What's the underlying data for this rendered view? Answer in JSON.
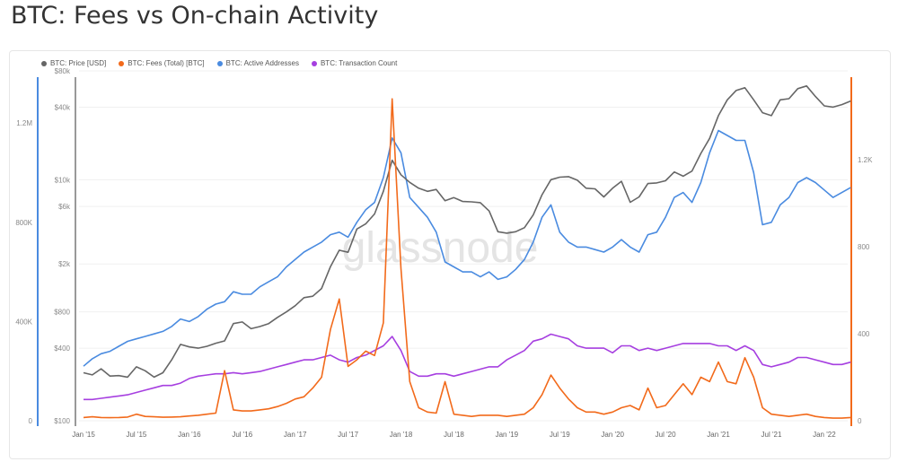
{
  "title": "BTC: Fees vs On-chain Activity",
  "watermark": "glassnode",
  "chart_data": {
    "type": "line",
    "legend_position": "top-left",
    "grid": true,
    "x": [
      "2015-01",
      "2015-02",
      "2015-03",
      "2015-04",
      "2015-05",
      "2015-06",
      "2015-07",
      "2015-08",
      "2015-09",
      "2015-10",
      "2015-11",
      "2015-12",
      "2016-01",
      "2016-02",
      "2016-03",
      "2016-04",
      "2016-05",
      "2016-06",
      "2016-07",
      "2016-08",
      "2016-09",
      "2016-10",
      "2016-11",
      "2016-12",
      "2017-01",
      "2017-02",
      "2017-03",
      "2017-04",
      "2017-05",
      "2017-06",
      "2017-07",
      "2017-08",
      "2017-09",
      "2017-10",
      "2017-11",
      "2017-12",
      "2018-01",
      "2018-02",
      "2018-03",
      "2018-04",
      "2018-05",
      "2018-06",
      "2018-07",
      "2018-08",
      "2018-09",
      "2018-10",
      "2018-11",
      "2018-12",
      "2019-01",
      "2019-02",
      "2019-03",
      "2019-04",
      "2019-05",
      "2019-06",
      "2019-07",
      "2019-08",
      "2019-09",
      "2019-10",
      "2019-11",
      "2019-12",
      "2020-01",
      "2020-02",
      "2020-03",
      "2020-04",
      "2020-05",
      "2020-06",
      "2020-07",
      "2020-08",
      "2020-09",
      "2020-10",
      "2020-11",
      "2020-12",
      "2021-01",
      "2021-02",
      "2021-03",
      "2021-04",
      "2021-05",
      "2021-06",
      "2021-07",
      "2021-08",
      "2021-09",
      "2021-10",
      "2021-11",
      "2021-12",
      "2022-01",
      "2022-02",
      "2022-03",
      "2022-04"
    ],
    "x_ticks": [
      "Jan '15",
      "Jul '15",
      "Jan '16",
      "Jul '16",
      "Jan '17",
      "Jul '17",
      "Jan '18",
      "Jul '18",
      "Jan '19",
      "Jul '19",
      "Jan '20",
      "Jul '20",
      "Jan '21",
      "Jul '21",
      "Jan '22"
    ],
    "axes": {
      "addresses": {
        "ticks": [
          "0",
          "400K",
          "800K",
          "1.2M"
        ],
        "tick_values": [
          0,
          400000,
          800000,
          1200000
        ],
        "range": [
          0,
          1385000
        ],
        "color": "#4a8be0"
      },
      "price": {
        "scale": "log",
        "ticks": [
          "$100",
          "$400",
          "$800",
          "$2k",
          "$6k",
          "$10k",
          "$40k",
          "$80k"
        ],
        "tick_values": [
          100,
          400,
          800,
          2000,
          6000,
          10000,
          40000,
          80000
        ],
        "range": [
          100,
          80000
        ],
        "color": "#888888"
      },
      "fees": {
        "ticks": [
          "0",
          "400",
          "800",
          "1.2K"
        ],
        "tick_values": [
          0,
          400,
          800,
          1200
        ],
        "range": [
          0,
          1580
        ],
        "color": "#f26a1b"
      },
      "tx": {
        "range": [
          19000,
          1492000
        ],
        "hidden": true
      }
    },
    "series": [
      {
        "name": "BTC: Price [USD]",
        "axis": "price",
        "color": "#666666",
        "values": [
          250,
          240,
          270,
          235,
          237,
          230,
          280,
          260,
          230,
          250,
          320,
          430,
          410,
          400,
          415,
          440,
          460,
          640,
          660,
          580,
          605,
          640,
          720,
          800,
          900,
          1050,
          1080,
          1250,
          1900,
          2600,
          2500,
          3900,
          4300,
          5200,
          8000,
          14500,
          11000,
          9500,
          8500,
          8000,
          8300,
          6700,
          7100,
          6600,
          6550,
          6450,
          5500,
          3700,
          3600,
          3700,
          4000,
          5100,
          7500,
          10000,
          10500,
          10600,
          9900,
          8500,
          8400,
          7200,
          8500,
          9700,
          6500,
          7200,
          9300,
          9400,
          9800,
          11600,
          10700,
          11800,
          16500,
          22000,
          34000,
          46000,
          55000,
          58000,
          46000,
          36000,
          34000,
          46000,
          47000,
          57000,
          60000,
          49000,
          41000,
          40000,
          42000,
          45000
        ]
      },
      {
        "name": "BTC: Fees (Total) [BTC]",
        "axis": "fees",
        "color": "#f26a1b",
        "values": [
          15,
          18,
          15,
          14,
          15,
          17,
          30,
          20,
          18,
          16,
          17,
          18,
          22,
          25,
          30,
          35,
          230,
          50,
          45,
          45,
          50,
          55,
          65,
          80,
          100,
          110,
          150,
          200,
          420,
          560,
          250,
          280,
          320,
          300,
          450,
          1480,
          700,
          180,
          60,
          40,
          35,
          180,
          30,
          25,
          20,
          25,
          25,
          25,
          20,
          25,
          30,
          60,
          120,
          210,
          150,
          100,
          60,
          40,
          40,
          30,
          40,
          60,
          70,
          50,
          150,
          60,
          70,
          120,
          170,
          120,
          200,
          180,
          270,
          180,
          170,
          290,
          200,
          60,
          30,
          25,
          20,
          25,
          30,
          20,
          15,
          12,
          12,
          15
        ]
      },
      {
        "name": "BTC: Active Addresses",
        "axis": "addresses",
        "color": "#4a8be0",
        "values": [
          220000,
          250000,
          270000,
          280000,
          300000,
          320000,
          330000,
          340000,
          350000,
          360000,
          380000,
          410000,
          400000,
          420000,
          450000,
          470000,
          480000,
          520000,
          510000,
          510000,
          540000,
          560000,
          580000,
          620000,
          650000,
          680000,
          700000,
          720000,
          750000,
          760000,
          740000,
          800000,
          850000,
          880000,
          980000,
          1140000,
          1080000,
          900000,
          860000,
          820000,
          760000,
          640000,
          620000,
          600000,
          600000,
          580000,
          600000,
          570000,
          580000,
          610000,
          650000,
          720000,
          820000,
          870000,
          760000,
          720000,
          700000,
          700000,
          690000,
          680000,
          700000,
          730000,
          700000,
          680000,
          750000,
          760000,
          820000,
          900000,
          920000,
          880000,
          960000,
          1080000,
          1170000,
          1150000,
          1130000,
          1130000,
          1000000,
          790000,
          800000,
          870000,
          900000,
          960000,
          980000,
          960000,
          930000,
          900000,
          920000,
          940000
        ]
      },
      {
        "name": "BTC: Transaction Count",
        "axis": "tx",
        "color": "#a63fe0",
        "values": [
          110000,
          110000,
          115000,
          120000,
          125000,
          130000,
          140000,
          150000,
          160000,
          170000,
          170000,
          180000,
          200000,
          210000,
          215000,
          220000,
          220000,
          225000,
          220000,
          225000,
          230000,
          240000,
          250000,
          260000,
          270000,
          280000,
          280000,
          290000,
          300000,
          280000,
          270000,
          290000,
          300000,
          320000,
          340000,
          380000,
          320000,
          230000,
          210000,
          210000,
          220000,
          220000,
          210000,
          220000,
          230000,
          240000,
          250000,
          250000,
          280000,
          300000,
          320000,
          360000,
          370000,
          390000,
          380000,
          370000,
          340000,
          330000,
          330000,
          330000,
          310000,
          340000,
          340000,
          320000,
          330000,
          320000,
          330000,
          340000,
          350000,
          350000,
          350000,
          350000,
          340000,
          340000,
          320000,
          340000,
          320000,
          260000,
          250000,
          260000,
          270000,
          290000,
          290000,
          280000,
          270000,
          260000,
          260000,
          270000
        ]
      }
    ]
  }
}
